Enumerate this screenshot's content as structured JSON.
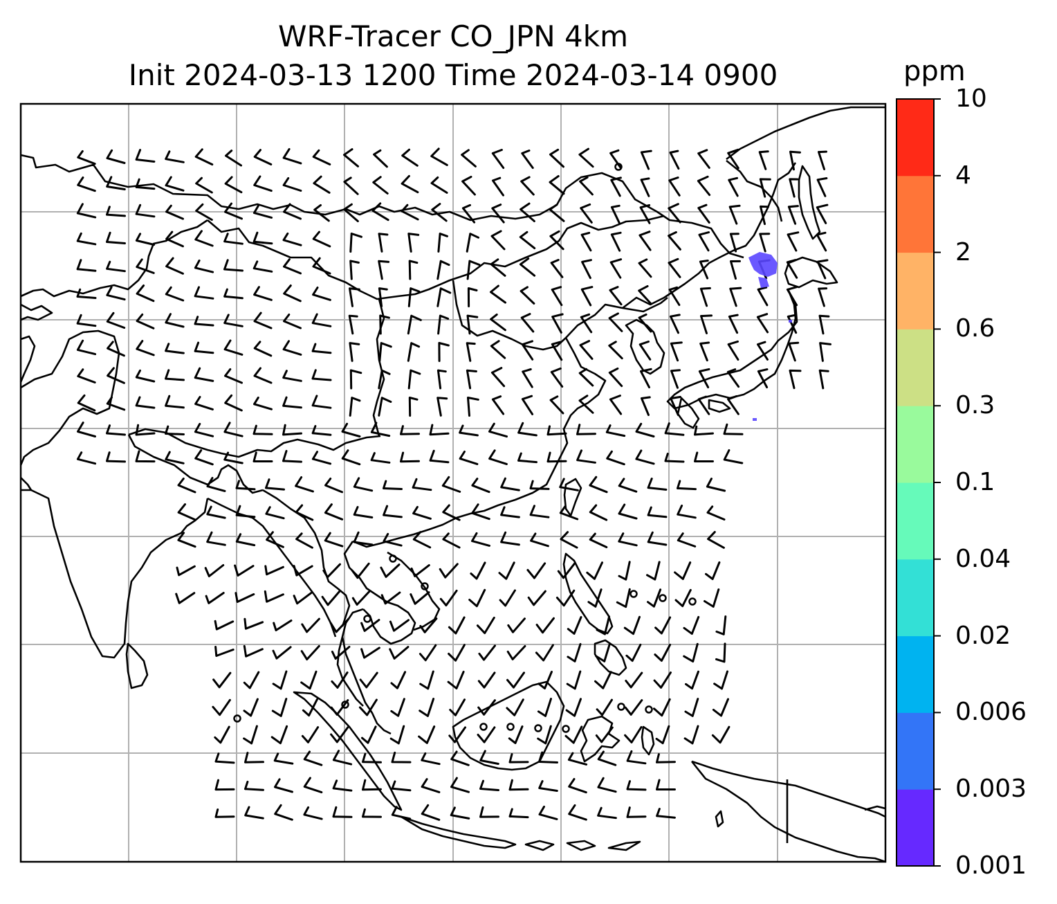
{
  "map": {
    "title": "WRF-Tracer CO_JPN 4km",
    "subtitle": "Init 2024-03-13 1200 Time 2024-03-14 0900",
    "colorbar": {
      "unit": "ppm",
      "levels": [
        "0.001",
        "0.003",
        "0.006",
        "0.02",
        "0.04",
        "0.1",
        "0.3",
        "0.6",
        "2",
        "4",
        "10"
      ],
      "colors": [
        "#6629ff",
        "#3375f7",
        "#00b3f0",
        "#33e0d6",
        "#66faba",
        "#99fa9c",
        "#cce085",
        "#ffb366",
        "#ff7538",
        "#ff2a17"
      ]
    },
    "plume_color": "#5a46ff",
    "map_features": [
      "coastlines",
      "lat-lon-gridlines",
      "wind-barbs",
      "co-tracer-plume"
    ]
  }
}
